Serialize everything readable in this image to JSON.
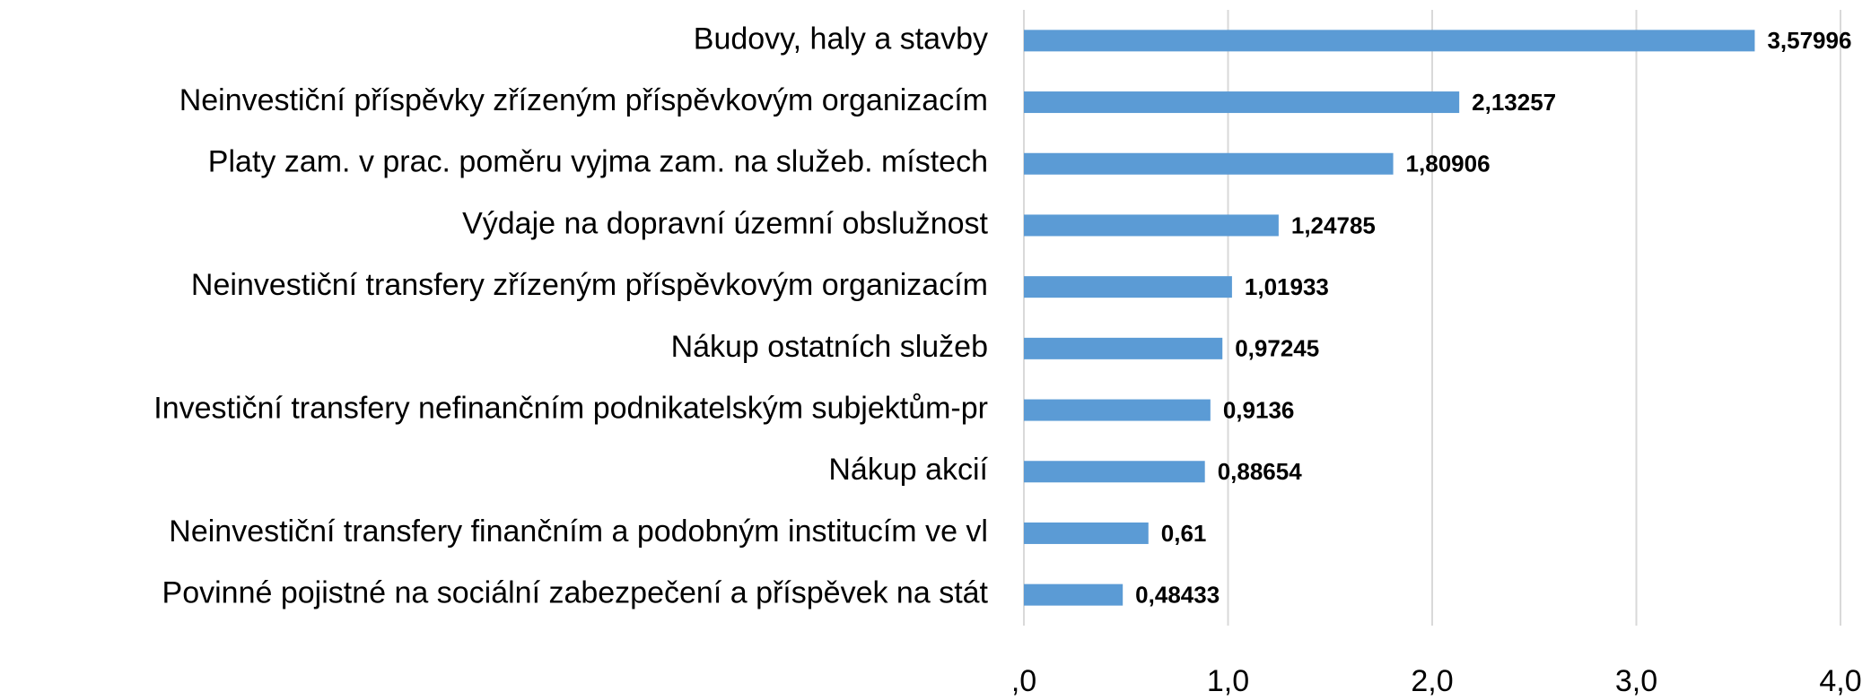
{
  "chart_data": {
    "type": "barh",
    "categories": [
      "Budovy, haly a stavby",
      "Neinvestiční příspěvky zřízeným příspěvkovým organizacím",
      "Platy zam. v prac. poměru vyjma zam. na služeb. místech",
      "Výdaje na dopravní územní obslužnost",
      "Neinvestiční transfery zřízeným příspěvkovým organizacím",
      "Nákup ostatních služeb",
      "Investiční transfery nefinančním podnikatelským subjektům-pr",
      "Nákup akcií",
      "Neinvestiční transfery finančním a podobným institucím ve vl",
      "Povinné pojistné na sociální zabezpečení a příspěvek na stát"
    ],
    "values": [
      3.57996,
      2.13257,
      1.80906,
      1.24785,
      1.01933,
      0.97245,
      0.9136,
      0.88654,
      0.61,
      0.48433
    ],
    "value_labels": [
      "3,57996",
      "2,13257",
      "1,80906",
      "1,24785",
      "1,01933",
      "0,97245",
      "0,9136",
      "0,88654",
      "0,61",
      "0,48433"
    ],
    "color": "#5b9bd5",
    "xlim": [
      0,
      4
    ],
    "xticks": [
      {
        "value": 0,
        "label": ",0"
      },
      {
        "value": 1,
        "label": "1,0"
      },
      {
        "value": 2,
        "label": "2,0"
      },
      {
        "value": 3,
        "label": "3,0"
      },
      {
        "value": 4,
        "label": "4,0"
      }
    ],
    "grid": true
  }
}
